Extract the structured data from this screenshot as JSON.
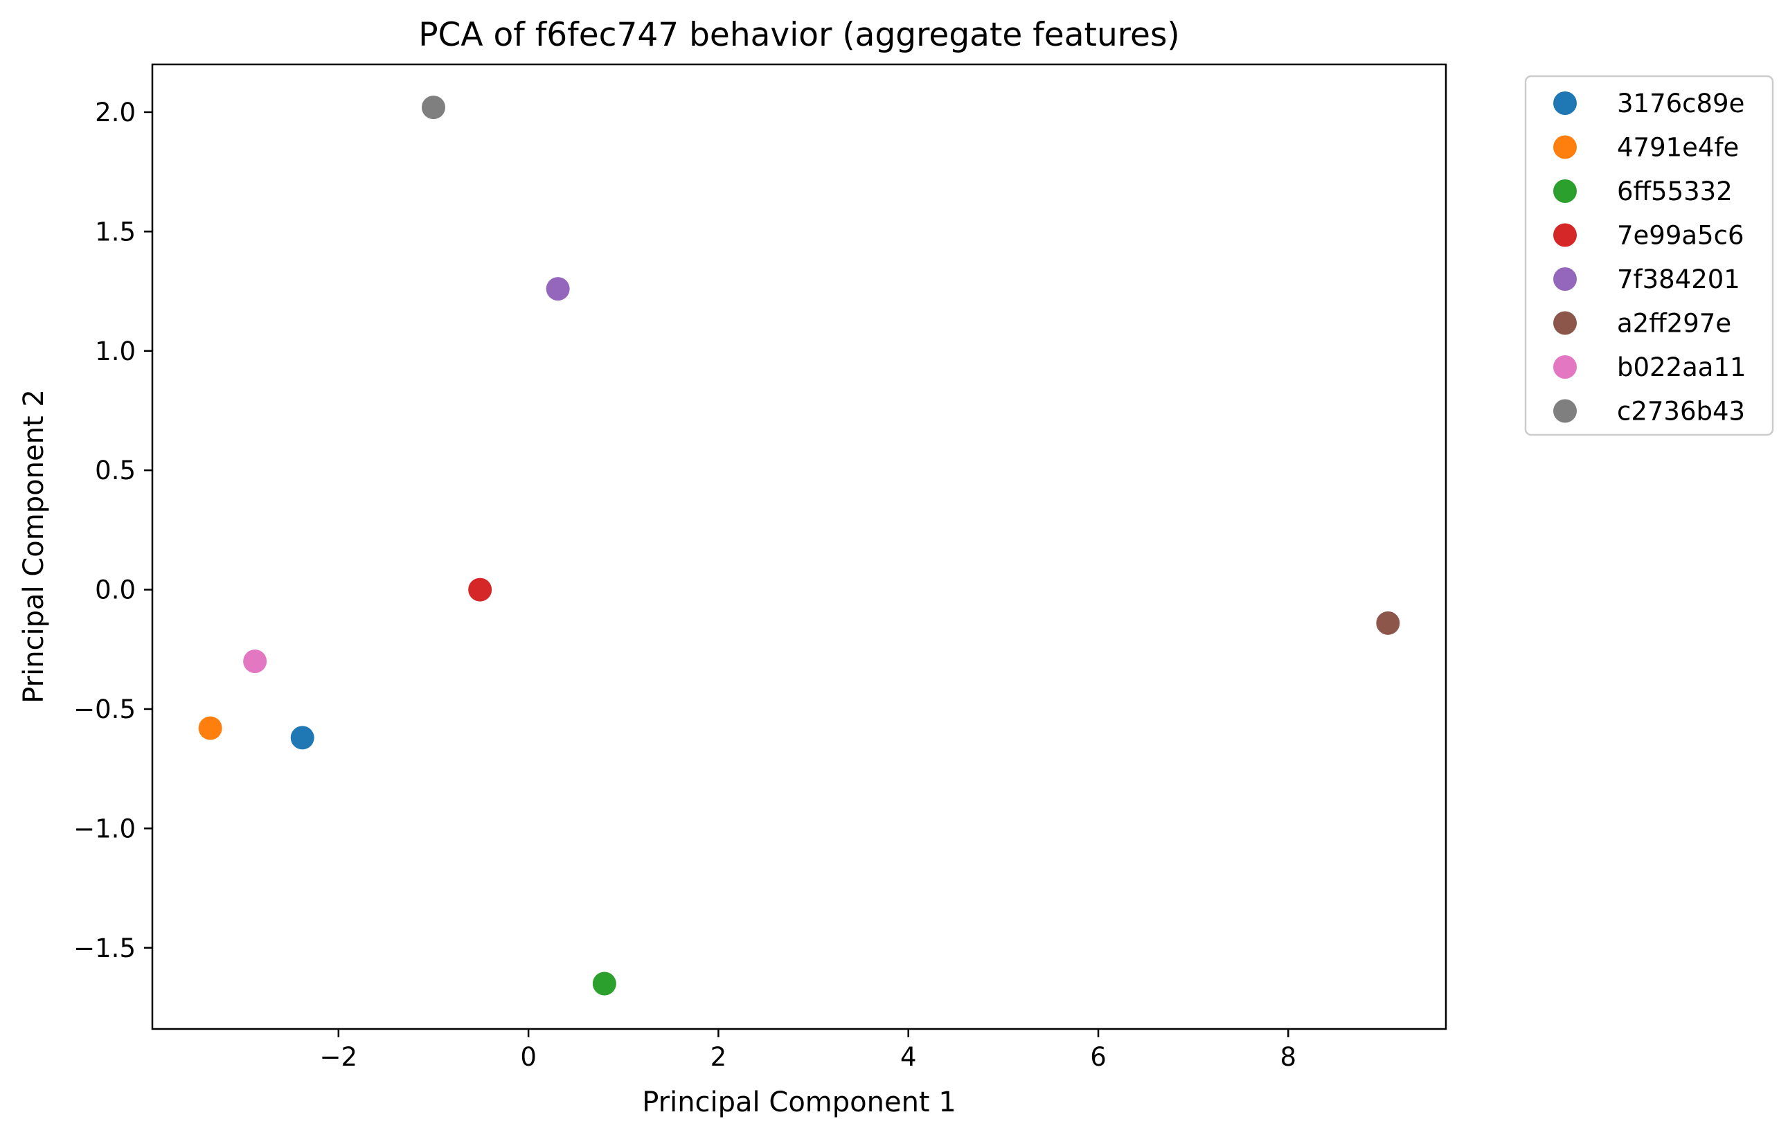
{
  "chart_data": {
    "type": "scatter",
    "title": "PCA of f6fec747 behavior (aggregate features)",
    "xlabel": "Principal Component 1",
    "ylabel": "Principal Component 2",
    "xlim": [
      -3.96,
      9.66
    ],
    "ylim": [
      -1.84,
      2.2
    ],
    "xticks": [
      -2,
      0,
      2,
      4,
      6,
      8
    ],
    "xtick_labels": [
      "−2",
      "0",
      "2",
      "4",
      "6",
      "8"
    ],
    "yticks": [
      -1.5,
      -1.0,
      -0.5,
      0.0,
      0.5,
      1.0,
      1.5,
      2.0
    ],
    "ytick_labels": [
      "−1.5",
      "−1.0",
      "−0.5",
      "0.0",
      "0.5",
      "1.0",
      "1.5",
      "2.0"
    ],
    "grid": false,
    "legend_position": "outside-right-top",
    "series": [
      {
        "name": "3176c89e",
        "color": "#1f77b4",
        "x": -2.38,
        "y": -0.62
      },
      {
        "name": "4791e4fe",
        "color": "#ff7f0e",
        "x": -3.35,
        "y": -0.58
      },
      {
        "name": "6ff55332",
        "color": "#2ca02c",
        "x": 0.8,
        "y": -1.65
      },
      {
        "name": "7e99a5c6",
        "color": "#d62728",
        "x": -0.51,
        "y": 0.0
      },
      {
        "name": "7f384201",
        "color": "#9467bd",
        "x": 0.31,
        "y": 1.26
      },
      {
        "name": "a2ff297e",
        "color": "#8c564b",
        "x": 9.05,
        "y": -0.14
      },
      {
        "name": "b022aa11",
        "color": "#e377c2",
        "x": -2.88,
        "y": -0.3
      },
      {
        "name": "c2736b43",
        "color": "#7f7f7f",
        "x": -1.0,
        "y": 2.02
      }
    ]
  }
}
